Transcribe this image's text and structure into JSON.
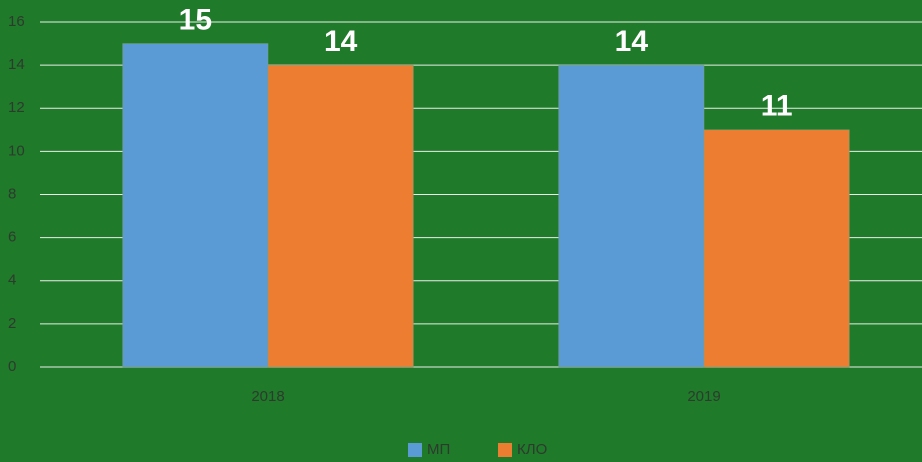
{
  "chart_data": {
    "type": "bar",
    "categories": [
      "2018",
      "2019"
    ],
    "series": [
      {
        "name": "МП",
        "color": "#5b9bd5",
        "values": [
          15,
          14
        ]
      },
      {
        "name": "КЛО",
        "color": "#ed7d31",
        "values": [
          14,
          11
        ]
      }
    ],
    "ylim": [
      0,
      16
    ],
    "yticks": [
      0,
      2,
      4,
      6,
      8,
      10,
      12,
      14,
      16
    ],
    "grid": true,
    "legend": "bottom"
  }
}
